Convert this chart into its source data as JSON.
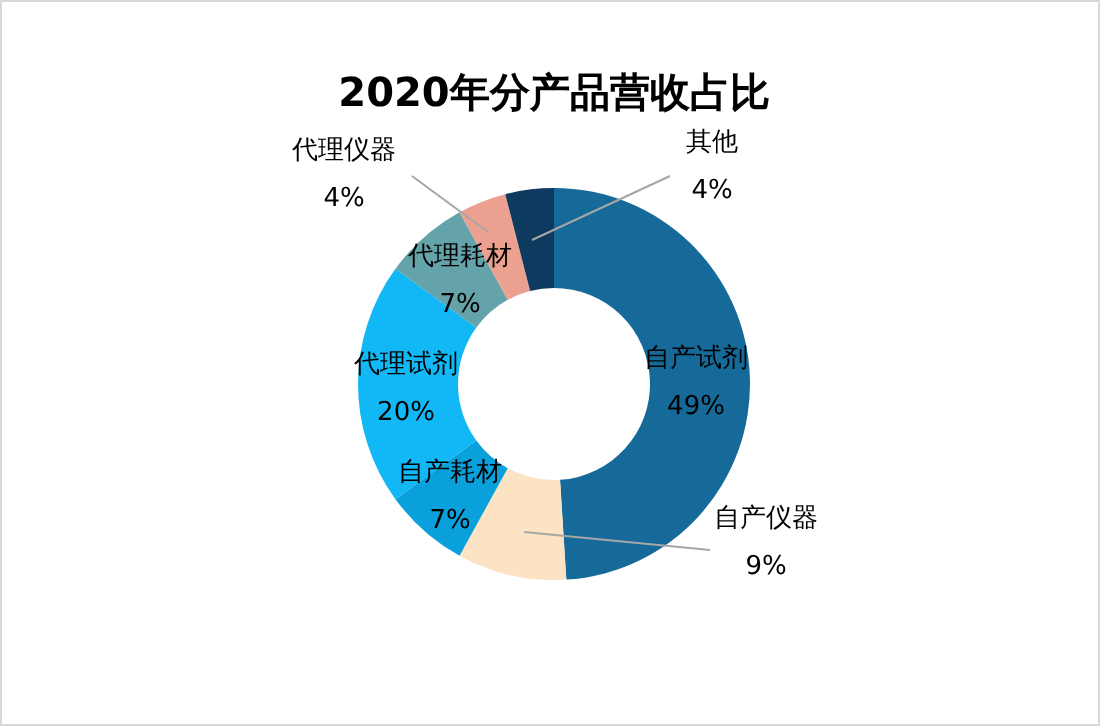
{
  "chart_data": {
    "type": "donut",
    "title": "2020年分产品营收占比",
    "categories": [
      "自产试剂",
      "自产仪器",
      "自产耗材",
      "代理试剂",
      "代理耗材",
      "代理仪器",
      "其他"
    ],
    "values": [
      49,
      9,
      7,
      20,
      7,
      4,
      4
    ],
    "colors": [
      "#156a9a",
      "#fbe3c3",
      "#0aa0dc",
      "#12b7f5",
      "#64a3a9",
      "#eca090",
      "#0e3a60"
    ],
    "value_labels": [
      "49%",
      "9%",
      "7%",
      "20%",
      "7%",
      "4%",
      "4%"
    ],
    "legend": false
  }
}
